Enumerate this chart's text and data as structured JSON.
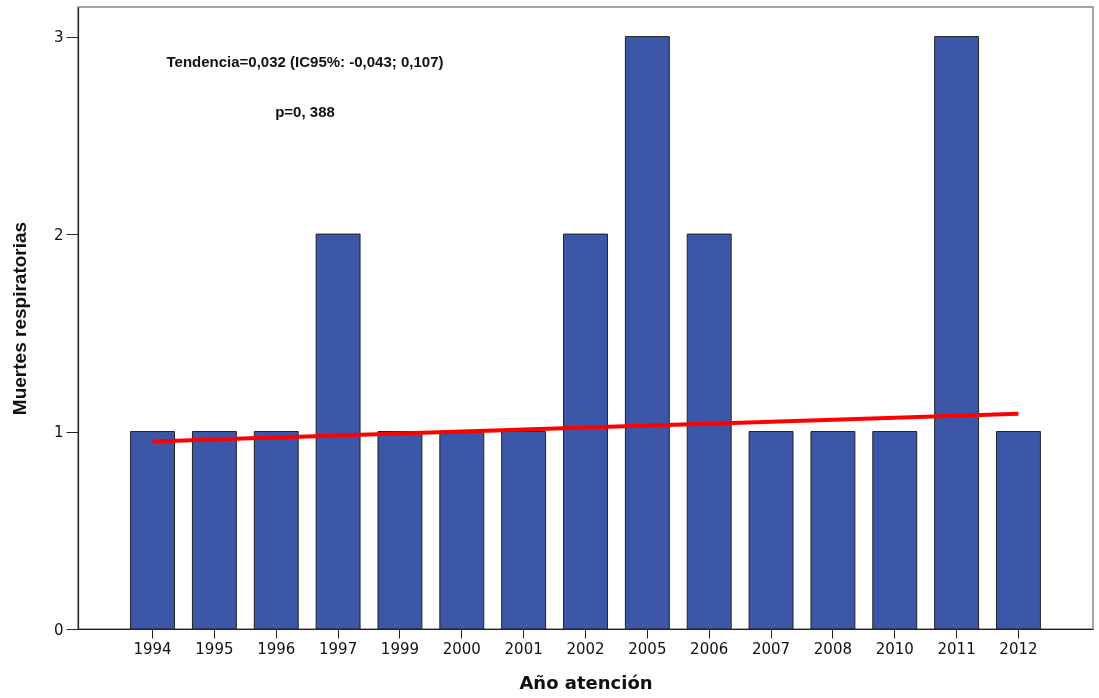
{
  "chart_data": {
    "type": "bar",
    "xlabel": "Año atención",
    "ylabel": "Muertes respiratorias",
    "categories": [
      "1994",
      "1995",
      "1996",
      "1997",
      "1999",
      "2000",
      "2001",
      "2002",
      "2005",
      "2006",
      "2007",
      "2008",
      "2010",
      "2011",
      "2012"
    ],
    "series": [
      {
        "color": "#3d57a8",
        "values": [
          1,
          1,
          1,
          2,
          1,
          1,
          1,
          2,
          3,
          2,
          1,
          1,
          1,
          3,
          1
        ]
      },
      {
        "type": "line",
        "color": "#ff0000",
        "values": [
          0.95,
          0.96,
          0.97,
          0.98,
          0.99,
          1.0,
          1.01,
          1.02,
          1.03,
          1.04,
          1.05,
          1.06,
          1.07,
          1.08,
          1.09
        ]
      }
    ],
    "ylim": [
      0,
      3.15
    ],
    "yticks": [
      0,
      1,
      2,
      3
    ],
    "annotations": [
      "Tendencia=0,032 (IC95%: -0,043; 0,107)",
      "p=0, 388"
    ]
  }
}
